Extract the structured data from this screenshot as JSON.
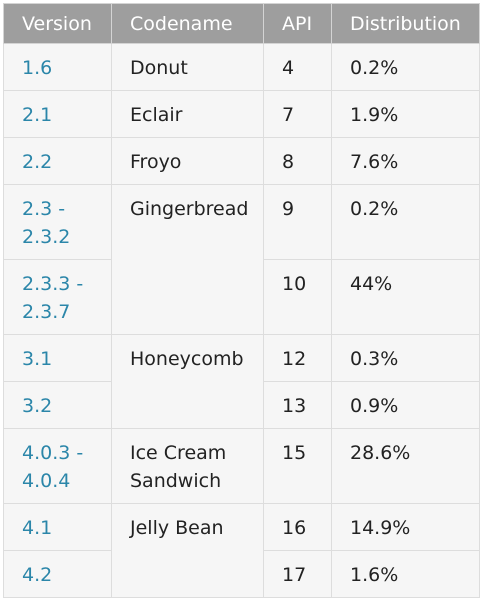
{
  "headers": {
    "version": "Version",
    "codename": "Codename",
    "api": "API",
    "distribution": "Distribution"
  },
  "rows": [
    {
      "version": "1.6",
      "codename": "Donut",
      "api": "4",
      "distribution": "0.2%"
    },
    {
      "version": "2.1",
      "codename": "Eclair",
      "api": "7",
      "distribution": "1.9%"
    },
    {
      "version": "2.2",
      "codename": "Froyo",
      "api": "8",
      "distribution": "7.6%"
    },
    {
      "version": "2.3 -\n2.3.2",
      "codename": "Gingerbread",
      "api": "9",
      "distribution": "0.2%"
    },
    {
      "version": "2.3.3 -\n2.3.7",
      "codename": "",
      "api": "10",
      "distribution": "44%"
    },
    {
      "version": "3.1",
      "codename": "Honeycomb",
      "api": "12",
      "distribution": "0.3%"
    },
    {
      "version": "3.2",
      "codename": "",
      "api": "13",
      "distribution": "0.9%"
    },
    {
      "version": "4.0.3 -\n4.0.4",
      "codename": "Ice Cream\nSandwich",
      "api": "15",
      "distribution": "28.6%"
    },
    {
      "version": "4.1",
      "codename": "Jelly Bean",
      "api": "16",
      "distribution": "14.9%"
    },
    {
      "version": "4.2",
      "codename": "",
      "api": "17",
      "distribution": "1.6%"
    }
  ],
  "colors": {
    "header_background": "#9e9e9e",
    "header_text": "#ffffff",
    "cell_background": "#f6f6f6",
    "version_link": "#2b86a9",
    "body_text": "#222222"
  }
}
